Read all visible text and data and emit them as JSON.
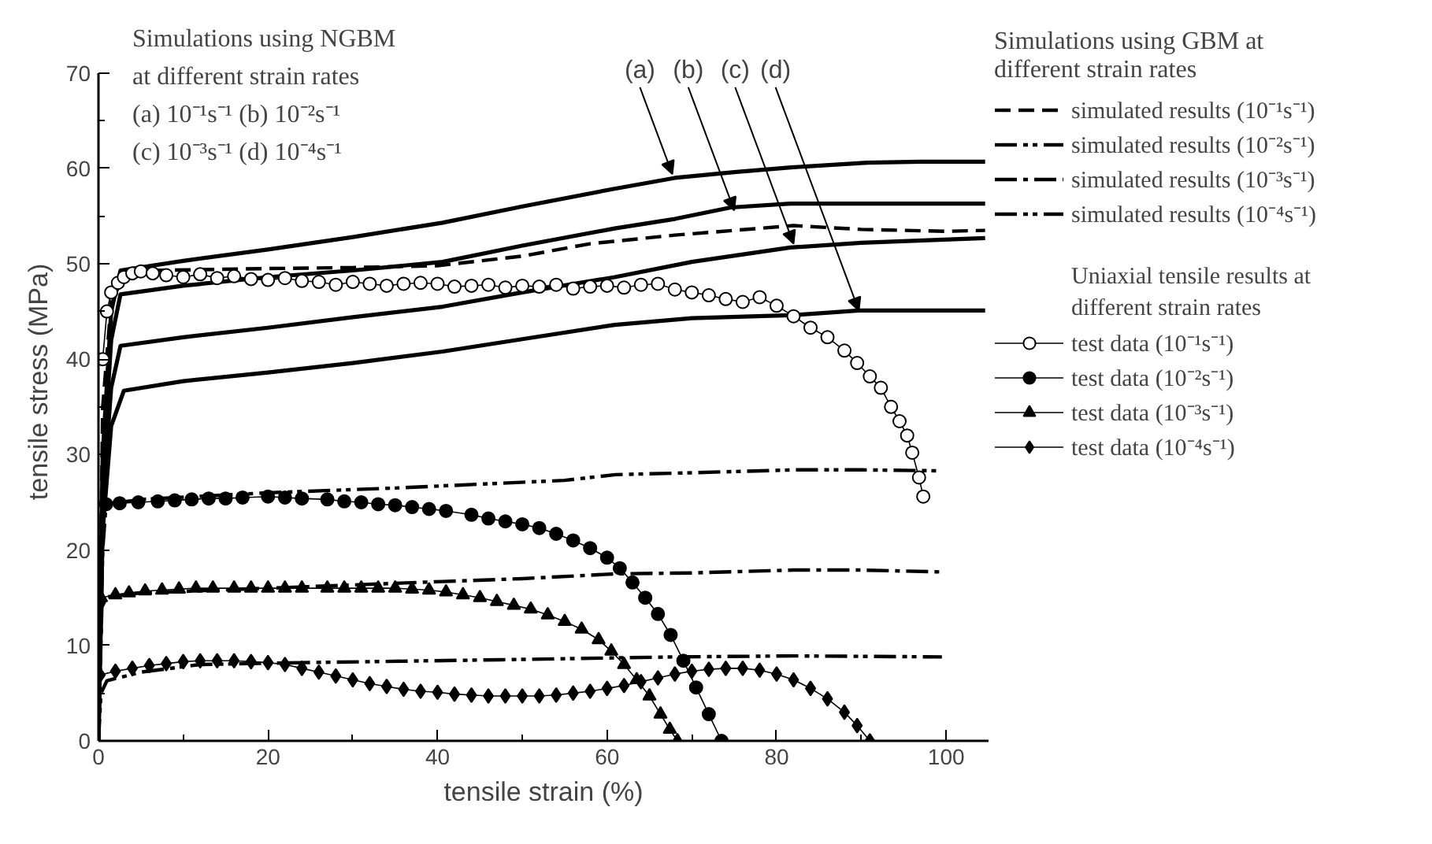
{
  "chart_data": {
    "type": "line",
    "xlabel": "tensile strain (%)",
    "ylabel": "tensile stress (MPa)",
    "xlim": [
      0,
      105
    ],
    "xticks": [
      0,
      {
        "value": 10,
        "label": null
      },
      20,
      {
        "value": 30,
        "label": null
      },
      40,
      {
        "value": 50,
        "label": null
      },
      60,
      {
        "value": 70,
        "label": null
      },
      80,
      {
        "value": 90,
        "label": null
      },
      100
    ],
    "ylim": [
      0,
      70
    ],
    "yticks": [
      0,
      {
        "value": 5,
        "label": null
      },
      10,
      {
        "value": 15,
        "label": null
      },
      20,
      {
        "value": 25,
        "label": null
      },
      30,
      {
        "value": 35,
        "label": null
      },
      40,
      {
        "value": 45,
        "label": null
      },
      50,
      {
        "value": 55,
        "label": null
      },
      60,
      {
        "value": 65,
        "label": null
      },
      70
    ],
    "grid": false,
    "legend": "right",
    "annotations": [
      "Simulations using NGBM\nat different strain rates\n(a)  10⁻¹s⁻¹ (b)  10⁻²s⁻¹\n(c)  10⁻³s⁻¹ (d)  10⁻⁴s⁻¹",
      "Simulations using GBM at\ndifferent strain rates",
      "Uniaxial tensile results at\ndifferent strain rates",
      {
        "text": "(a)",
        "x": 67.7,
        "y": 59.4
      },
      {
        "text": "(b)",
        "x": 75,
        "y": 55.6
      },
      {
        "text": "(c)",
        "x": 82,
        "y": 52.1
      },
      {
        "text": "(d)",
        "x": 89.7,
        "y": 45.1
      }
    ],
    "series": [
      {
        "color": "#000000",
        "line_style": "solid",
        "marker": "none",
        "x": [
          0,
          0.5,
          1.5,
          2.6,
          10,
          20,
          30,
          40.6,
          50,
          60.5,
          68,
          75,
          81.7,
          90.7,
          97,
          104.6
        ],
        "values": [
          0,
          30,
          45,
          49.3,
          50.3,
          51.5,
          52.8,
          54.3,
          56,
          57.8,
          59,
          59.6,
          60.1,
          60.6,
          60.7,
          60.7
        ]
      },
      {
        "color": "#000000",
        "line_style": "solid",
        "marker": "none",
        "x": [
          0,
          0.5,
          1.5,
          2.6,
          10,
          20,
          30,
          40.6,
          50,
          60.9,
          68,
          74.6,
          81.6,
          90,
          104.6
        ],
        "values": [
          0,
          28,
          42,
          46.8,
          47.7,
          48.6,
          49.3,
          50.2,
          51.9,
          53.7,
          54.7,
          55.9,
          56.3,
          56.3,
          56.3
        ]
      },
      {
        "color": "#000000",
        "line_style": "solid",
        "marker": "none",
        "x": [
          0,
          0.5,
          1.5,
          2.6,
          10,
          20,
          30,
          40.6,
          50,
          60.9,
          70,
          81.6,
          90,
          104.6
        ],
        "values": [
          0,
          25,
          37,
          41.4,
          42.3,
          43.3,
          44.4,
          45.5,
          47,
          48.6,
          50.2,
          51.7,
          52.2,
          52.7
        ]
      },
      {
        "color": "#000000",
        "line_style": "solid",
        "marker": "none",
        "x": [
          0,
          0.5,
          1.5,
          3,
          10,
          20,
          30,
          40.6,
          50,
          60.9,
          70,
          81.6,
          89.7,
          104.6
        ],
        "values": [
          0,
          22,
          33,
          36.7,
          37.7,
          38.6,
          39.6,
          40.8,
          42.1,
          43.6,
          44.3,
          44.6,
          45.1,
          45.1
        ]
      },
      {
        "name": "simulated results (10⁻¹s⁻¹)",
        "color": "#000000",
        "line_style": "dashed",
        "marker": "none",
        "x": [
          0,
          0.5,
          1.5,
          3,
          6.4,
          20,
          30,
          40,
          50,
          58,
          68,
          75,
          82,
          90,
          100,
          104.6
        ],
        "values": [
          0,
          35,
          46,
          48.7,
          49.3,
          49.5,
          49.6,
          49.8,
          50.8,
          52.1,
          53,
          53.5,
          54,
          53.6,
          53.4,
          53.5
        ]
      },
      {
        "name": "simulated results (10⁻²s⁻¹)",
        "color": "#000000",
        "line_style": "dashdotdot",
        "marker": "none",
        "x": [
          0,
          0.5,
          0.9,
          5,
          20,
          35,
          47.5,
          55,
          61,
          70,
          82,
          90,
          99.5
        ],
        "values": [
          0,
          20,
          24.8,
          25.3,
          26,
          26.5,
          27,
          27.3,
          27.9,
          28.1,
          28.4,
          28.4,
          28.3
        ]
      },
      {
        "name": "simulated results (10⁻³s⁻¹)",
        "color": "#000000",
        "line_style": "dashdot",
        "marker": "none",
        "x": [
          0,
          0.4,
          1,
          5,
          20,
          40.6,
          50,
          61,
          70,
          82,
          90,
          99.5
        ],
        "values": [
          0,
          14,
          15.1,
          15.5,
          16,
          16.7,
          17,
          17.5,
          17.6,
          17.9,
          17.9,
          17.7
        ]
      },
      {
        "name": "simulated results (10⁻⁴s⁻¹)",
        "color": "#000000",
        "line_style": "dashdotdot",
        "marker": "none",
        "x": [
          0,
          0.3,
          1,
          5,
          12,
          24,
          47.5,
          68,
          82,
          99.5
        ],
        "values": [
          0,
          5,
          6.3,
          7.2,
          8,
          8.2,
          8.5,
          8.8,
          8.9,
          8.8
        ]
      },
      {
        "name": "test data (10⁻¹s⁻¹)",
        "color": "#000000",
        "line_style": "solid",
        "marker": "circle_open",
        "x": [
          0.5,
          1,
          1.5,
          2.3,
          3,
          4,
          5,
          6.4,
          8,
          10,
          12,
          14,
          16,
          18,
          20,
          22,
          24,
          26,
          28,
          30,
          32,
          34,
          36,
          38,
          40,
          42,
          44,
          46,
          48,
          50,
          52,
          54,
          56,
          58,
          60,
          62,
          64,
          66,
          68,
          70,
          72,
          74,
          76,
          78,
          80,
          82,
          84,
          86,
          88,
          89.5,
          91,
          92.3,
          93.5,
          94.5,
          95.4,
          96,
          96.8,
          97.3
        ],
        "values": [
          40,
          45,
          47,
          48,
          48.6,
          49,
          49.2,
          49,
          48.8,
          48.6,
          48.9,
          48.5,
          48.7,
          48.4,
          48.3,
          48.5,
          48.2,
          48.1,
          47.8,
          48.1,
          47.9,
          47.7,
          47.9,
          48,
          47.9,
          47.6,
          47.7,
          47.8,
          47.5,
          47.7,
          47.6,
          47.8,
          47.4,
          47.6,
          47.7,
          47.5,
          47.8,
          47.9,
          47.3,
          47,
          46.7,
          46.3,
          46.0,
          46.5,
          45.6,
          44.5,
          43.3,
          42.3,
          40.9,
          39.6,
          38.2,
          37,
          35,
          33.5,
          32,
          30.2,
          27.6,
          25.6
        ]
      },
      {
        "name": "test data (10⁻²s⁻¹)",
        "color": "#000000",
        "line_style": "solid",
        "marker": "circle",
        "x": [
          0.9,
          2.5,
          4.7,
          7,
          9,
          11,
          13,
          15,
          17,
          20,
          22,
          24,
          27,
          29,
          31,
          33,
          35,
          37,
          39,
          41,
          44,
          46,
          48,
          50,
          52,
          54,
          56,
          58,
          60,
          61.5,
          63,
          64.5,
          66,
          67.5,
          69,
          70.5,
          72,
          73.5
        ],
        "values": [
          24.8,
          24.9,
          25,
          25.1,
          25.2,
          25.3,
          25.4,
          25.4,
          25.5,
          25.6,
          25.5,
          25.4,
          25.3,
          25.1,
          25,
          24.8,
          24.7,
          24.5,
          24.3,
          24.1,
          23.7,
          23.3,
          23,
          22.7,
          22.3,
          21.7,
          21,
          20.2,
          19.2,
          18.1,
          16.6,
          15,
          13.3,
          11.1,
          8.4,
          5.6,
          2.8,
          0
        ]
      },
      {
        "name": "test data (10⁻³s⁻¹)",
        "color": "#000000",
        "line_style": "solid",
        "marker": "triangle",
        "x": [
          0.3,
          2,
          3.6,
          5.5,
          7.5,
          9.5,
          11.5,
          13.5,
          16,
          18,
          20,
          22,
          24,
          27,
          29,
          31,
          33,
          35,
          37,
          39,
          41,
          43,
          45,
          47,
          49,
          51,
          53,
          55,
          57,
          59,
          60.5,
          62,
          63.5,
          65,
          66.3,
          67.4,
          68.3
        ],
        "values": [
          15,
          15.3,
          15.5,
          15.7,
          15.8,
          15.9,
          16,
          16,
          16,
          16,
          16,
          16,
          16,
          16,
          16,
          16,
          16,
          16,
          15.9,
          15.8,
          15.6,
          15.3,
          15,
          14.6,
          14.2,
          13.8,
          13.2,
          12.5,
          11.7,
          10.6,
          9.4,
          8,
          6.4,
          4.7,
          2.8,
          1.2,
          0
        ]
      },
      {
        "name": "test data (10⁻⁴s⁻¹)",
        "color": "#000000",
        "line_style": "solid",
        "marker": "diamond",
        "x": [
          0.2,
          2,
          4,
          6,
          8,
          10,
          12,
          14,
          16,
          18,
          20,
          22,
          24,
          26,
          28,
          30,
          32,
          34,
          36,
          38,
          40,
          42,
          44,
          46,
          48,
          50,
          52,
          54,
          56,
          58,
          60,
          62,
          64,
          66,
          68,
          70,
          72,
          74,
          76,
          78,
          80,
          82,
          84,
          86,
          88,
          89.5,
          91
        ],
        "values": [
          6.9,
          7.3,
          7.6,
          7.9,
          8.1,
          8.3,
          8.4,
          8.4,
          8.4,
          8.3,
          8.2,
          8,
          7.6,
          7.2,
          6.8,
          6.4,
          6,
          5.7,
          5.4,
          5.2,
          5.1,
          4.9,
          4.8,
          4.7,
          4.7,
          4.7,
          4.7,
          4.8,
          5,
          5.2,
          5.5,
          5.8,
          6.2,
          6.6,
          7,
          7.3,
          7.5,
          7.6,
          7.6,
          7.4,
          7,
          6.4,
          5.5,
          4.4,
          3,
          1.6,
          0
        ]
      }
    ]
  }
}
